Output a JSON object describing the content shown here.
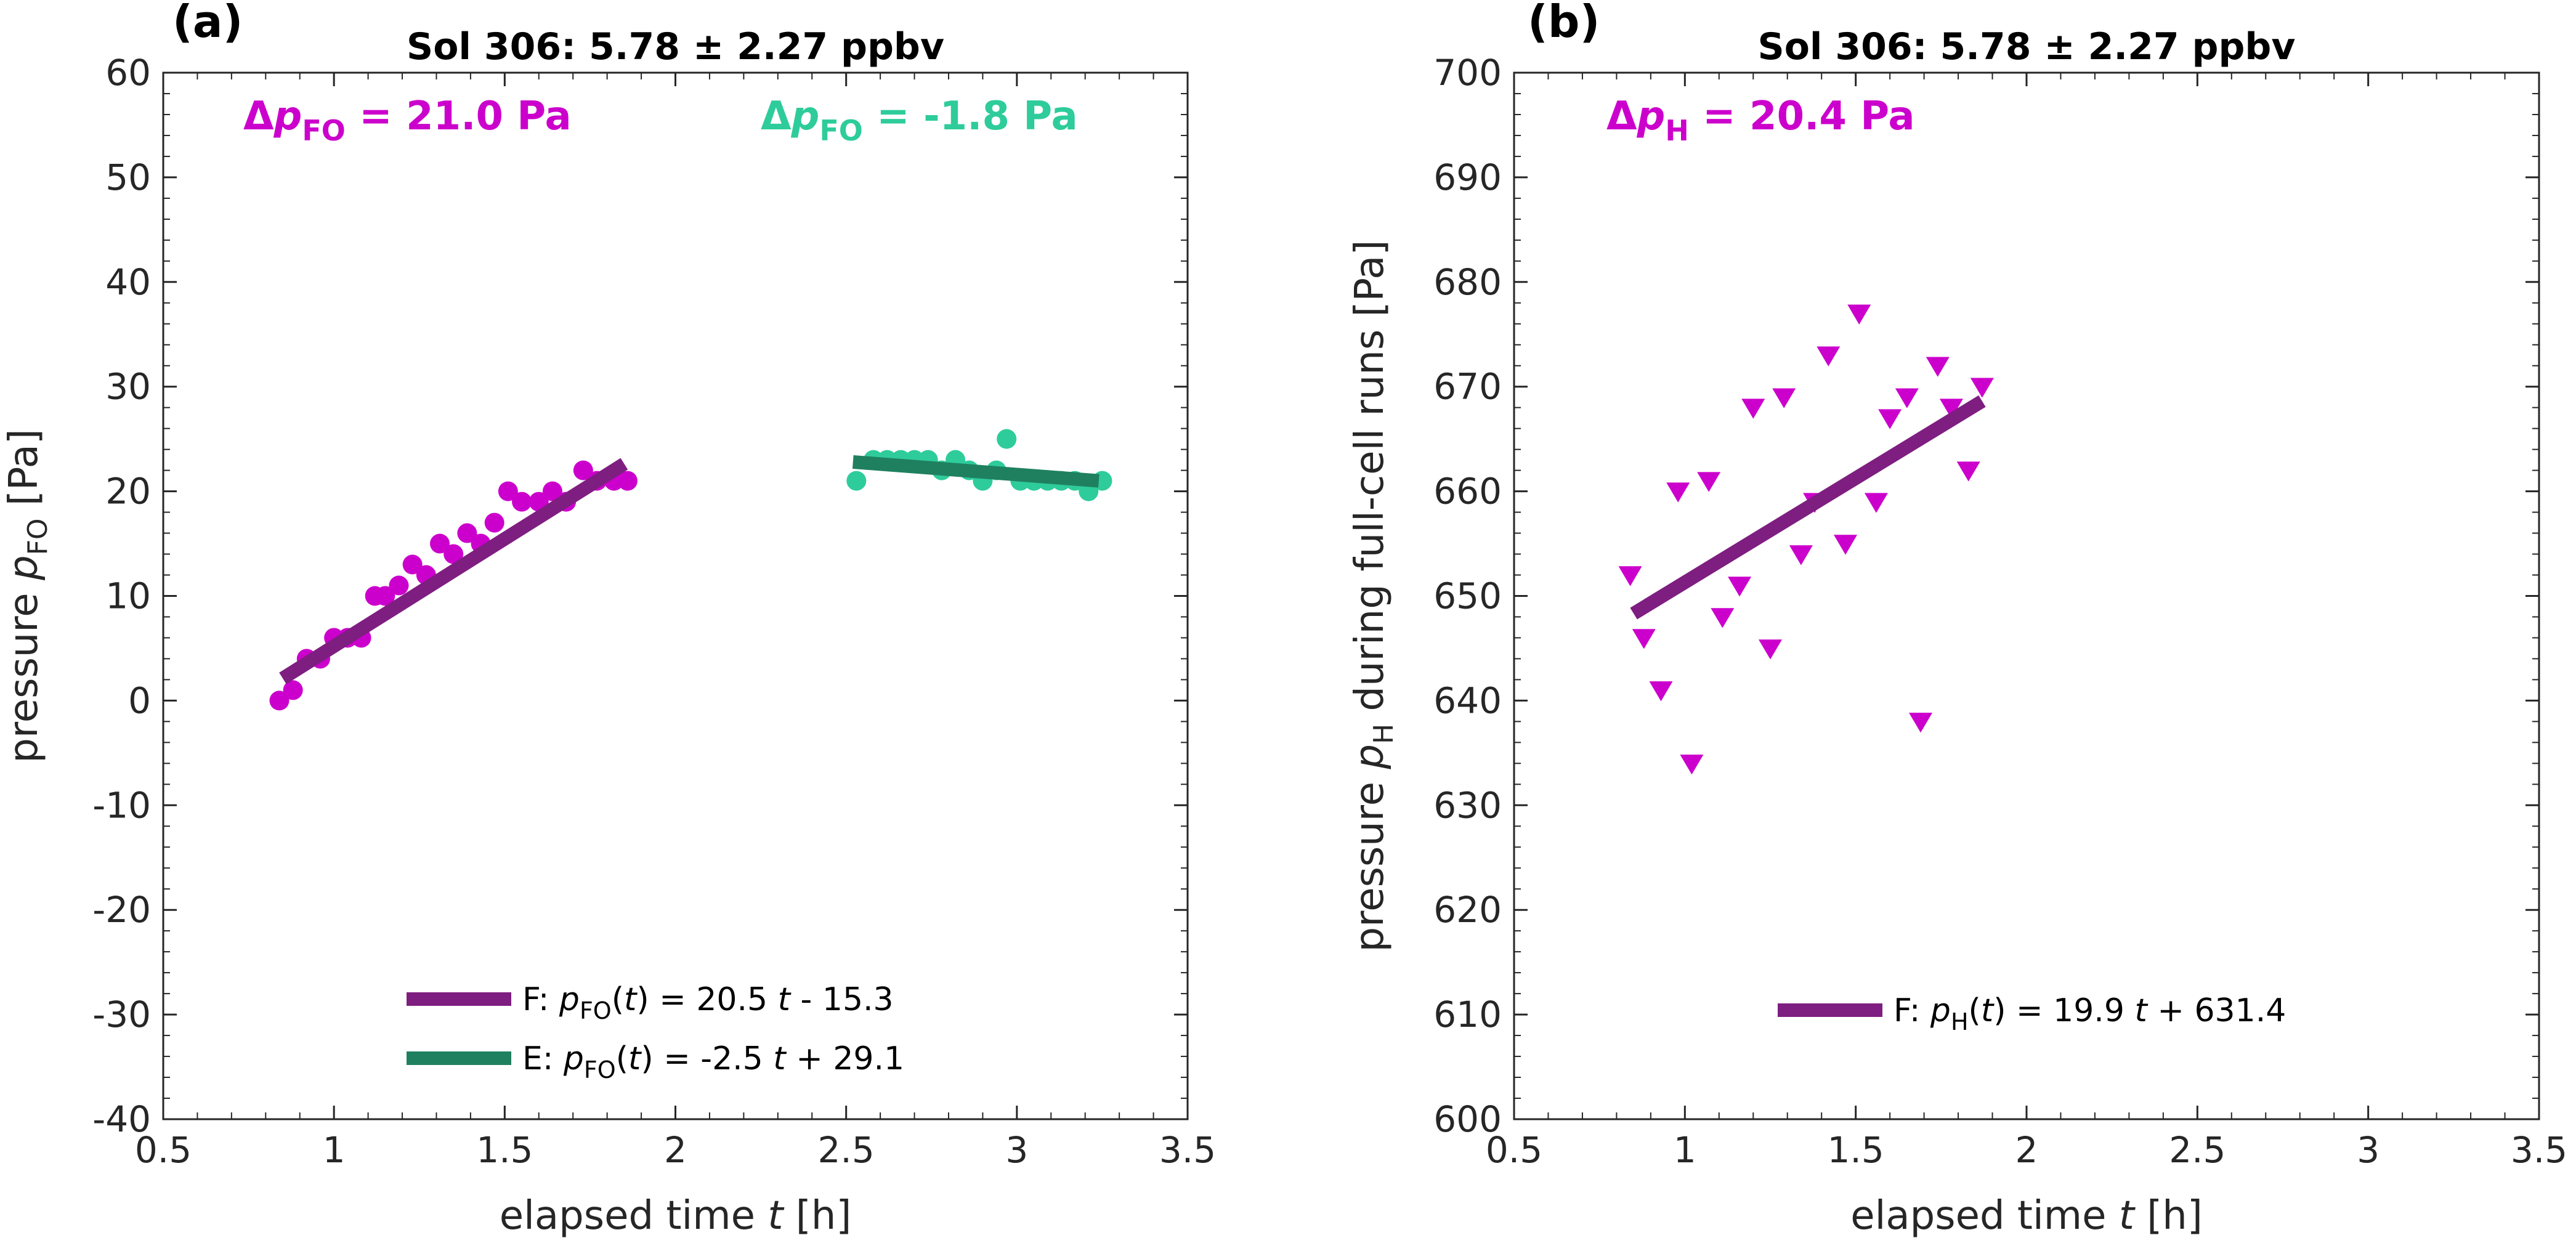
{
  "colors": {
    "fo_points": "#cc00cc",
    "fo_fit": "#7e1e80",
    "e_points": "#2ecc9a",
    "e_fit": "#1f8060",
    "h_points": "#cc00cc",
    "h_fit": "#7e1e80"
  },
  "chart_data": [
    {
      "type": "scatter",
      "panel_label": "(a)",
      "title": "Sol 306: 5.78 ± 2.27 ppbv",
      "xlabel": {
        "prefix": "elapsed time ",
        "var": "t",
        "suffix": " [h]"
      },
      "ylabel": {
        "prefix": "pressure ",
        "var": "p",
        "sub": "FO",
        "suffix": " [Pa]"
      },
      "xlim": [
        0.5,
        3.5
      ],
      "ylim": [
        -40,
        60
      ],
      "xticks": [
        "0.5",
        "1",
        "1.5",
        "2",
        "2.5",
        "3",
        "3.5"
      ],
      "yticks": [
        "-40",
        "-30",
        "-20",
        "-10",
        "0",
        "10",
        "20",
        "30",
        "40",
        "50",
        "60"
      ],
      "annotations": [
        {
          "prefix": "Δ",
          "var": "p",
          "sub": "FO",
          "suffix": " = 21.0 Pa",
          "series": "F"
        },
        {
          "prefix": "Δ",
          "var": "p",
          "sub": "FO",
          "suffix": " = -1.8 Pa",
          "series": "E"
        }
      ],
      "series": [
        {
          "name": "F",
          "marker": "circle",
          "x": [
            0.84,
            0.88,
            0.92,
            0.96,
            1.0,
            1.04,
            1.08,
            1.12,
            1.15,
            1.19,
            1.23,
            1.27,
            1.31,
            1.35,
            1.39,
            1.43,
            1.47,
            1.51,
            1.55,
            1.6,
            1.64,
            1.68,
            1.73,
            1.77,
            1.82,
            1.86
          ],
          "y": [
            0,
            1,
            4,
            4,
            6,
            6,
            6,
            10,
            10,
            11,
            13,
            12,
            15,
            14,
            16,
            15,
            17,
            20,
            19,
            19,
            20,
            19,
            22,
            21,
            21,
            21
          ],
          "fit": {
            "label_prefix": "F: ",
            "var": "p",
            "sub": "FO",
            "label_suffix": "(t) = 20.5 t - 15.3",
            "slope": 20.5,
            "intercept": -15.3,
            "x_range": [
              0.85,
              1.85
            ]
          }
        },
        {
          "name": "E",
          "marker": "circle",
          "x": [
            2.53,
            2.58,
            2.62,
            2.66,
            2.7,
            2.74,
            2.78,
            2.82,
            2.86,
            2.9,
            2.94,
            2.97,
            3.01,
            3.05,
            3.09,
            3.13,
            3.17,
            3.21,
            3.25
          ],
          "y": [
            21,
            23,
            23,
            23,
            23,
            23,
            22,
            23,
            22,
            21,
            22,
            25,
            21,
            21,
            21,
            21,
            21,
            20,
            21
          ],
          "fit": {
            "label_prefix": "E: ",
            "var": "p",
            "sub": "FO",
            "label_suffix": "(t) = -2.5 t + 29.1",
            "slope": -2.5,
            "intercept": 29.1,
            "x_range": [
              2.52,
              3.24
            ]
          }
        }
      ]
    },
    {
      "type": "scatter",
      "panel_label": "(b)",
      "title": "Sol 306: 5.78 ± 2.27 ppbv",
      "xlabel": {
        "prefix": "elapsed time ",
        "var": "t",
        "suffix": " [h]"
      },
      "ylabel": {
        "prefix": "pressure ",
        "var": "p",
        "sub": "H",
        "suffix": " during full-cell runs [Pa]"
      },
      "xlim": [
        0.5,
        3.5
      ],
      "ylim": [
        600,
        700
      ],
      "xticks": [
        "0.5",
        "1",
        "1.5",
        "2",
        "2.5",
        "3",
        "3.5"
      ],
      "yticks": [
        "600",
        "610",
        "620",
        "630",
        "640",
        "650",
        "660",
        "670",
        "680",
        "690",
        "700"
      ],
      "annotations": [
        {
          "prefix": "Δ",
          "var": "p",
          "sub": "H",
          "suffix": " = 20.4 Pa",
          "series": "F"
        }
      ],
      "series": [
        {
          "name": "F",
          "marker": "triangle-down",
          "x": [
            0.84,
            0.88,
            0.93,
            0.98,
            1.02,
            1.07,
            1.11,
            1.16,
            1.2,
            1.25,
            1.29,
            1.34,
            1.38,
            1.42,
            1.47,
            1.51,
            1.56,
            1.6,
            1.65,
            1.69,
            1.74,
            1.78,
            1.83,
            1.87
          ],
          "y": [
            652,
            646,
            641,
            660,
            634,
            661,
            648,
            651,
            668,
            645,
            669,
            654,
            659,
            673,
            655,
            677,
            659,
            667,
            669,
            638,
            672,
            668,
            662,
            670
          ],
          "fit": {
            "label_prefix": "F: ",
            "var": "p",
            "sub": "H",
            "label_suffix": "(t) = 19.9 t + 631.4",
            "slope": 19.9,
            "intercept": 631.4,
            "x_range": [
              0.85,
              1.87
            ]
          }
        }
      ]
    }
  ]
}
